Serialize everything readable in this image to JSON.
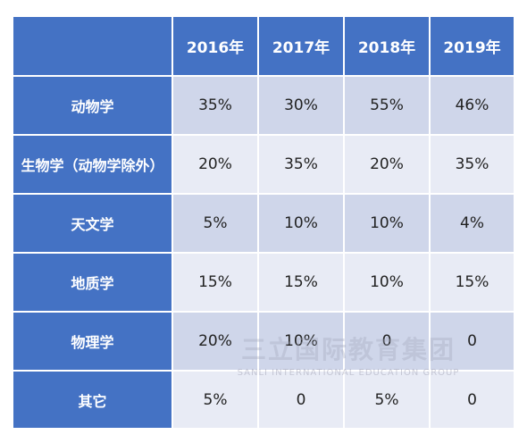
{
  "chart_data": {
    "type": "table",
    "header": [
      "",
      "2016年",
      "2017年",
      "2018年",
      "2019年"
    ],
    "rows": [
      {
        "label": "动物学",
        "values": [
          "35%",
          "30%",
          "55%",
          "46%"
        ]
      },
      {
        "label": "生物学（动物学除外）",
        "values": [
          "20%",
          "35%",
          "20%",
          "35%"
        ]
      },
      {
        "label": "天文学",
        "values": [
          "5%",
          "10%",
          "10%",
          "4%"
        ]
      },
      {
        "label": "地质学",
        "values": [
          "15%",
          "15%",
          "10%",
          "15%"
        ]
      },
      {
        "label": "物理学",
        "values": [
          "20%",
          "10%",
          "0",
          "0"
        ]
      },
      {
        "label": "其它",
        "values": [
          "5%",
          "0",
          "5%",
          "0"
        ]
      }
    ]
  },
  "watermark": {
    "text_cn": "三立国际教育集团",
    "text_en": "SANLI INTERNATIONAL EDUCATION GROUP"
  },
  "colors": {
    "header_blue": "#4472c4",
    "row_dark": "#cfd6ea",
    "row_light": "#e8ebf5"
  }
}
